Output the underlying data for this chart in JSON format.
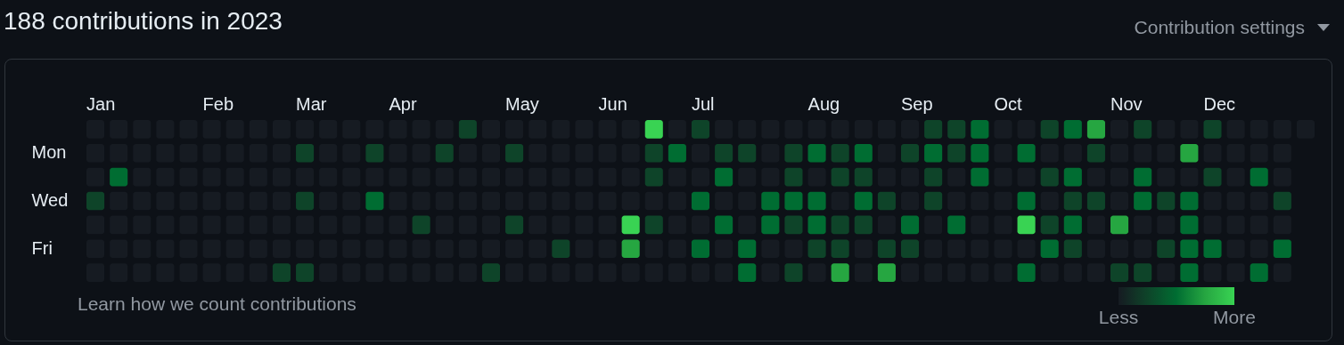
{
  "chart_data": {
    "type": "heatmap",
    "title": "188 contributions in 2023",
    "annotations": [
      "Contribution settings",
      "Learn how we count contributions"
    ],
    "categories": [
      "Jan",
      null,
      null,
      null,
      null,
      "Feb",
      null,
      null,
      null,
      "Mar",
      null,
      null,
      null,
      "Apr",
      null,
      null,
      null,
      null,
      "May",
      null,
      null,
      null,
      "Jun",
      null,
      null,
      null,
      "Jul",
      null,
      null,
      null,
      null,
      "Aug",
      null,
      null,
      null,
      "Sep",
      null,
      null,
      null,
      "Oct",
      null,
      null,
      null,
      null,
      "Nov",
      null,
      null,
      null,
      "Dec",
      null,
      null,
      null,
      null
    ],
    "y_categories": [
      null,
      "Mon",
      null,
      "Wed",
      null,
      "Fri",
      null
    ],
    "cells": [
      [
        0,
        0,
        0,
        0,
        0,
        0,
        0,
        0,
        0,
        0,
        0,
        0,
        0,
        0,
        0,
        0,
        1,
        0,
        0,
        0,
        0,
        0,
        0,
        0,
        4,
        0,
        1,
        0,
        0,
        0,
        0,
        0,
        0,
        0,
        0,
        0,
        1,
        1,
        2,
        0,
        0,
        1,
        2,
        3,
        0,
        1,
        0,
        0,
        1,
        0,
        0,
        0,
        0
      ],
      [
        0,
        0,
        0,
        0,
        0,
        0,
        0,
        0,
        0,
        1,
        0,
        0,
        1,
        0,
        0,
        1,
        0,
        0,
        1,
        0,
        0,
        0,
        0,
        0,
        1,
        2,
        0,
        1,
        1,
        0,
        1,
        2,
        1,
        2,
        0,
        1,
        2,
        1,
        2,
        0,
        2,
        0,
        0,
        1,
        0,
        0,
        0,
        3,
        0,
        0,
        0,
        0,
        null
      ],
      [
        0,
        2,
        0,
        0,
        0,
        0,
        0,
        0,
        0,
        0,
        0,
        0,
        0,
        0,
        0,
        0,
        0,
        0,
        0,
        0,
        0,
        0,
        0,
        0,
        1,
        0,
        0,
        2,
        0,
        0,
        1,
        0,
        1,
        1,
        0,
        0,
        1,
        0,
        2,
        0,
        0,
        1,
        2,
        0,
        0,
        2,
        0,
        0,
        1,
        0,
        2,
        0,
        null
      ],
      [
        1,
        0,
        0,
        0,
        0,
        0,
        0,
        0,
        0,
        1,
        0,
        0,
        2,
        0,
        0,
        0,
        0,
        0,
        0,
        0,
        0,
        0,
        0,
        0,
        0,
        0,
        2,
        0,
        0,
        2,
        2,
        2,
        0,
        2,
        1,
        0,
        1,
        0,
        0,
        0,
        2,
        0,
        1,
        1,
        0,
        2,
        1,
        2,
        0,
        0,
        0,
        1,
        null
      ],
      [
        0,
        0,
        0,
        0,
        0,
        0,
        0,
        0,
        0,
        0,
        0,
        0,
        0,
        0,
        1,
        0,
        0,
        0,
        1,
        0,
        0,
        0,
        0,
        4,
        1,
        0,
        0,
        2,
        0,
        2,
        1,
        2,
        1,
        1,
        0,
        2,
        0,
        2,
        0,
        0,
        4,
        1,
        2,
        0,
        3,
        0,
        0,
        2,
        0,
        0,
        0,
        0,
        null
      ],
      [
        0,
        0,
        0,
        0,
        0,
        0,
        0,
        0,
        0,
        0,
        0,
        0,
        0,
        0,
        0,
        0,
        0,
        0,
        0,
        0,
        1,
        0,
        0,
        3,
        0,
        0,
        2,
        0,
        2,
        0,
        0,
        1,
        1,
        0,
        1,
        1,
        0,
        0,
        0,
        0,
        0,
        2,
        1,
        0,
        0,
        0,
        1,
        2,
        2,
        0,
        0,
        2,
        null
      ],
      [
        0,
        0,
        0,
        0,
        0,
        0,
        0,
        0,
        1,
        1,
        0,
        0,
        0,
        0,
        0,
        0,
        0,
        1,
        0,
        0,
        0,
        0,
        0,
        0,
        0,
        0,
        0,
        0,
        2,
        0,
        1,
        0,
        3,
        0,
        3,
        0,
        0,
        0,
        0,
        0,
        2,
        0,
        0,
        0,
        1,
        1,
        0,
        2,
        0,
        0,
        2,
        0,
        null
      ]
    ],
    "clim": [
      0,
      4
    ],
    "cticks": [
      {
        "value": 0,
        "label": "Less"
      },
      {
        "value": 4,
        "label": "More"
      }
    ]
  }
}
